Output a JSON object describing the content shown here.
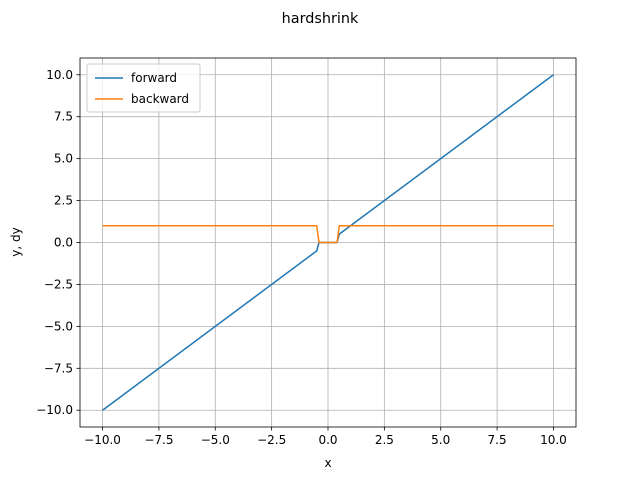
{
  "chart_data": {
    "type": "line",
    "title": "hardshrink",
    "xlabel": "x",
    "ylabel": "y, dy",
    "xlim": [
      -11.0,
      11.0
    ],
    "ylim": [
      -11.0,
      11.0
    ],
    "xticks": [
      -10.0,
      -7.5,
      -5.0,
      -2.5,
      0.0,
      2.5,
      5.0,
      7.5,
      10.0
    ],
    "xtick_labels": [
      "−10.0",
      "−7.5",
      "−5.0",
      "−2.5",
      "0.0",
      "2.5",
      "5.0",
      "7.5",
      "10.0"
    ],
    "yticks": [
      -10.0,
      -7.5,
      -5.0,
      -2.5,
      0.0,
      2.5,
      5.0,
      7.5,
      10.0
    ],
    "ytick_labels": [
      "−10.0",
      "−7.5",
      "−5.0",
      "−2.5",
      "0.0",
      "2.5",
      "5.0",
      "7.5",
      "10.0"
    ],
    "grid": true,
    "legend_position": "top-left",
    "series": [
      {
        "name": "forward",
        "color": "#1f77b4",
        "x": [
          -10.0,
          -0.5,
          -0.4,
          0.4,
          0.5,
          10.0
        ],
        "y": [
          -10.0,
          -0.5,
          0.0,
          0.0,
          0.5,
          10.0
        ]
      },
      {
        "name": "backward",
        "color": "#ff7f0e",
        "x": [
          -10.0,
          -0.5,
          -0.4,
          0.4,
          0.5,
          10.0
        ],
        "y": [
          1.0,
          1.0,
          0.0,
          0.0,
          1.0,
          1.0
        ]
      }
    ]
  }
}
